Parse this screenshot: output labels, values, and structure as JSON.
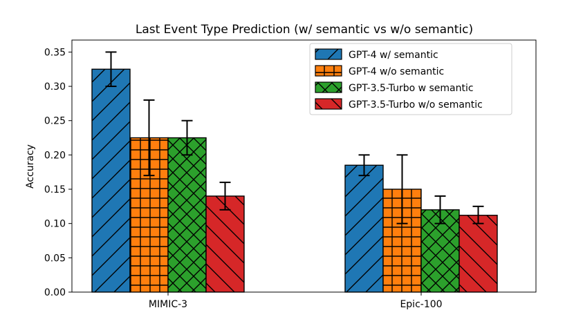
{
  "chart_data": {
    "type": "bar",
    "title": "Last Event Type Prediction (w/ semantic vs w/o semantic)",
    "xlabel": "",
    "ylabel": "Accuracy",
    "ylim": [
      0,
      0.35
    ],
    "yticks": [
      "0.00",
      "0.05",
      "0.10",
      "0.15",
      "0.20",
      "0.25",
      "0.30",
      "0.35"
    ],
    "grid": false,
    "legend_position": "top-right",
    "categories": [
      "MIMIC-3",
      "Epic-100"
    ],
    "series": [
      {
        "name": "GPT-4 w/ semantic",
        "color": "#1f77b4",
        "hatch": "diagonal-forward",
        "values": [
          0.325,
          0.185
        ],
        "error_low": [
          0.3,
          0.17
        ],
        "error_high": [
          0.35,
          0.2
        ]
      },
      {
        "name": "GPT-4 w/o semantic",
        "color": "#ff7f0e",
        "hatch": "grid",
        "values": [
          0.225,
          0.15
        ],
        "error_low": [
          0.17,
          0.1
        ],
        "error_high": [
          0.28,
          0.2
        ]
      },
      {
        "name": "GPT-3.5-Turbo w semantic",
        "color": "#2ca02c",
        "hatch": "crosshatch",
        "values": [
          0.225,
          0.12
        ],
        "error_low": [
          0.2,
          0.1
        ],
        "error_high": [
          0.25,
          0.14
        ]
      },
      {
        "name": "GPT-3.5-Turbo w/o semantic",
        "color": "#d62728",
        "hatch": "diagonal-back",
        "values": [
          0.14,
          0.112
        ],
        "error_low": [
          0.12,
          0.1
        ],
        "error_high": [
          0.16,
          0.125
        ]
      }
    ]
  }
}
